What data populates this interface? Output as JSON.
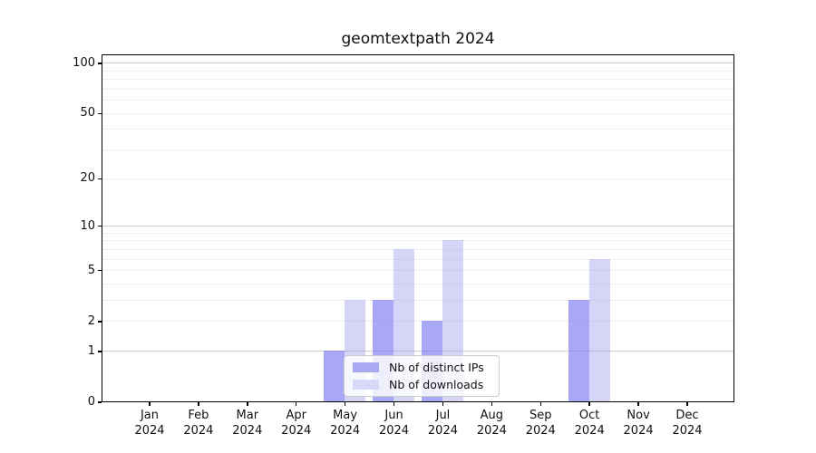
{
  "figure": {
    "title": "geomtextpath 2024",
    "background_color": "#ffffff"
  },
  "chart_data": {
    "type": "bar",
    "title": "geomtextpath 2024",
    "x_categories": [
      "Jan",
      "Feb",
      "Mar",
      "Apr",
      "May",
      "Jun",
      "Jul",
      "Aug",
      "Sep",
      "Oct",
      "Nov",
      "Dec"
    ],
    "x_year_label": "2024",
    "series": [
      {
        "name": "Nb of distinct IPs",
        "values": [
          0,
          0,
          0,
          0,
          1,
          3,
          2,
          0,
          0,
          3,
          0,
          0
        ],
        "bar_color": "rgba(110,110,240,0.6)",
        "legend_swatch_color": "#a9a9f2"
      },
      {
        "name": "Nb of downloads",
        "values": [
          0,
          0,
          0,
          0,
          3,
          7,
          8,
          0,
          0,
          6,
          0,
          0
        ],
        "bar_color": "rgba(150,150,235,0.4)",
        "legend_swatch_color": "#d8d8f8"
      }
    ],
    "y_scale": "log1p",
    "y_tick_labels": [
      "0",
      "1",
      "2",
      "5",
      "10",
      "20",
      "50",
      "100"
    ],
    "y_tick_values": [
      0,
      1,
      2,
      5,
      10,
      20,
      50,
      100
    ],
    "y_major_gridline_values": [
      1,
      10,
      100
    ],
    "y_minor_gridline_values": [
      2,
      3,
      4,
      5,
      6,
      7,
      8,
      9,
      20,
      30,
      40,
      50,
      60,
      70,
      80,
      90
    ],
    "ylim": [
      0,
      113
    ],
    "grid": true,
    "legend_position": "inside-bottom-center",
    "colors": {
      "major_gridline": "#cccccc",
      "minor_gridline": "#efefef",
      "axis": "#000000"
    }
  }
}
